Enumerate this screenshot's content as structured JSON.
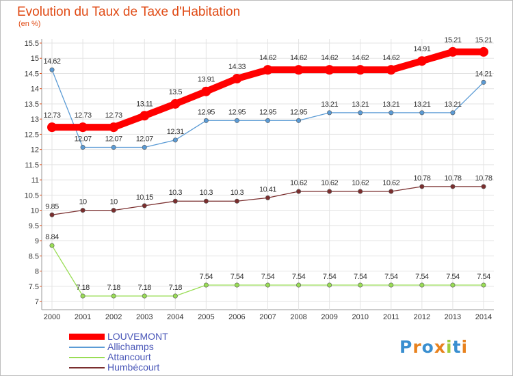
{
  "chart_data": {
    "type": "line",
    "title": "Evolution du Taux de Taxe d'Habitation",
    "subtitle": "(en %)",
    "x": [
      "2000",
      "2001",
      "2002",
      "2003",
      "2004",
      "2005",
      "2006",
      "2007",
      "2008",
      "2009",
      "2010",
      "2011",
      "2012",
      "2013",
      "2014"
    ],
    "ylim": [
      7,
      15.5
    ],
    "yticks": [
      "7",
      "7.5",
      "8",
      "8.5",
      "9",
      "9.5",
      "10",
      "10.5",
      "11",
      "11.5",
      "12",
      "12.5",
      "13",
      "13.5",
      "14",
      "14.5",
      "15",
      "15.5"
    ],
    "grid": true,
    "legend_position": "bottom-left",
    "series": [
      {
        "name": "LOUVEMONT",
        "color": "#ff0000",
        "values": [
          12.73,
          12.73,
          12.73,
          13.11,
          13.5,
          13.91,
          14.33,
          14.62,
          14.62,
          14.62,
          14.62,
          14.62,
          14.91,
          15.21,
          15.21
        ],
        "labels": [
          "12.73",
          "12.73",
          "12.73",
          "13.11",
          "13.5",
          "13.91",
          "14.33",
          "14.62",
          "14.62",
          "14.62",
          "14.62",
          "14.62",
          "14.91",
          "15.21",
          "15.21"
        ]
      },
      {
        "name": "Allichamps",
        "color": "#5b9bd5",
        "values": [
          14.62,
          12.07,
          12.07,
          12.07,
          12.31,
          12.95,
          12.95,
          12.95,
          12.95,
          13.21,
          13.21,
          13.21,
          13.21,
          13.21,
          14.21
        ],
        "labels": [
          "14.62",
          "12.07",
          "12.07",
          "12.07",
          "12.31",
          "12.95",
          "12.95",
          "12.95",
          "12.95",
          "13.21",
          "13.21",
          "13.21",
          "13.21",
          "13.21",
          "14.21"
        ]
      },
      {
        "name": "Attancourt",
        "color": "#99dd55",
        "values": [
          8.84,
          7.18,
          7.18,
          7.18,
          7.18,
          7.54,
          7.54,
          7.54,
          7.54,
          7.54,
          7.54,
          7.54,
          7.54,
          7.54,
          7.54
        ],
        "labels": [
          "8.84",
          "7.18",
          "7.18",
          "7.18",
          "7.18",
          "7.54",
          "7.54",
          "7.54",
          "7.54",
          "7.54",
          "7.54",
          "7.54",
          "7.54",
          "7.54",
          "7.54"
        ]
      },
      {
        "name": "Humbécourt",
        "color": "#7a2e2e",
        "values": [
          9.85,
          10,
          10,
          10.15,
          10.3,
          10.3,
          10.3,
          10.41,
          10.62,
          10.62,
          10.62,
          10.62,
          10.78,
          10.78,
          10.78
        ],
        "labels": [
          "9.85",
          "10",
          "10",
          "10.15",
          "10.3",
          "10.3",
          "10.3",
          "10.41",
          "10.62",
          "10.62",
          "10.62",
          "10.62",
          "10.78",
          "10.78",
          "10.78"
        ]
      }
    ]
  },
  "logo": {
    "text": "Proxiti"
  }
}
